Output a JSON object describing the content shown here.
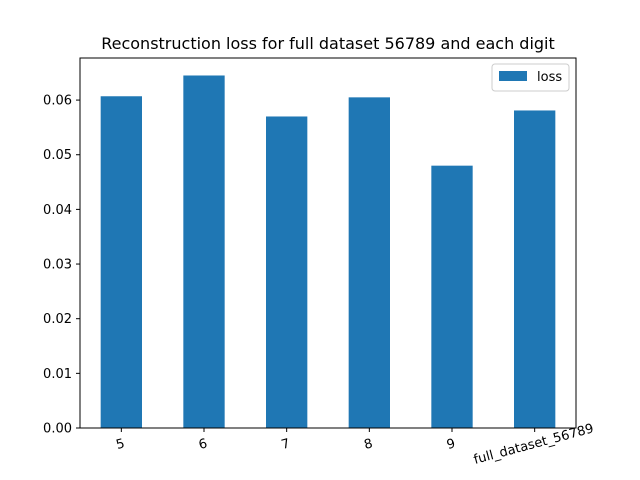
{
  "chart_data": {
    "type": "bar",
    "title": "Reconstruction loss for full dataset 56789 and each digit",
    "xlabel": "",
    "ylabel": "",
    "categories": [
      "5",
      "6",
      "7",
      "8",
      "9",
      "full_dataset_56789"
    ],
    "series": [
      {
        "name": "loss",
        "values": [
          0.0607,
          0.0645,
          0.057,
          0.0605,
          0.048,
          0.0581
        ]
      }
    ],
    "ylim": [
      0,
      0.0677
    ],
    "yticks": [
      "0.00",
      "0.01",
      "0.02",
      "0.03",
      "0.04",
      "0.05",
      "0.06"
    ],
    "grid": false,
    "legend": "top-right",
    "colors": {
      "bar": "#1f77b4",
      "axis": "#000000",
      "legend_border": "#cccccc"
    }
  }
}
